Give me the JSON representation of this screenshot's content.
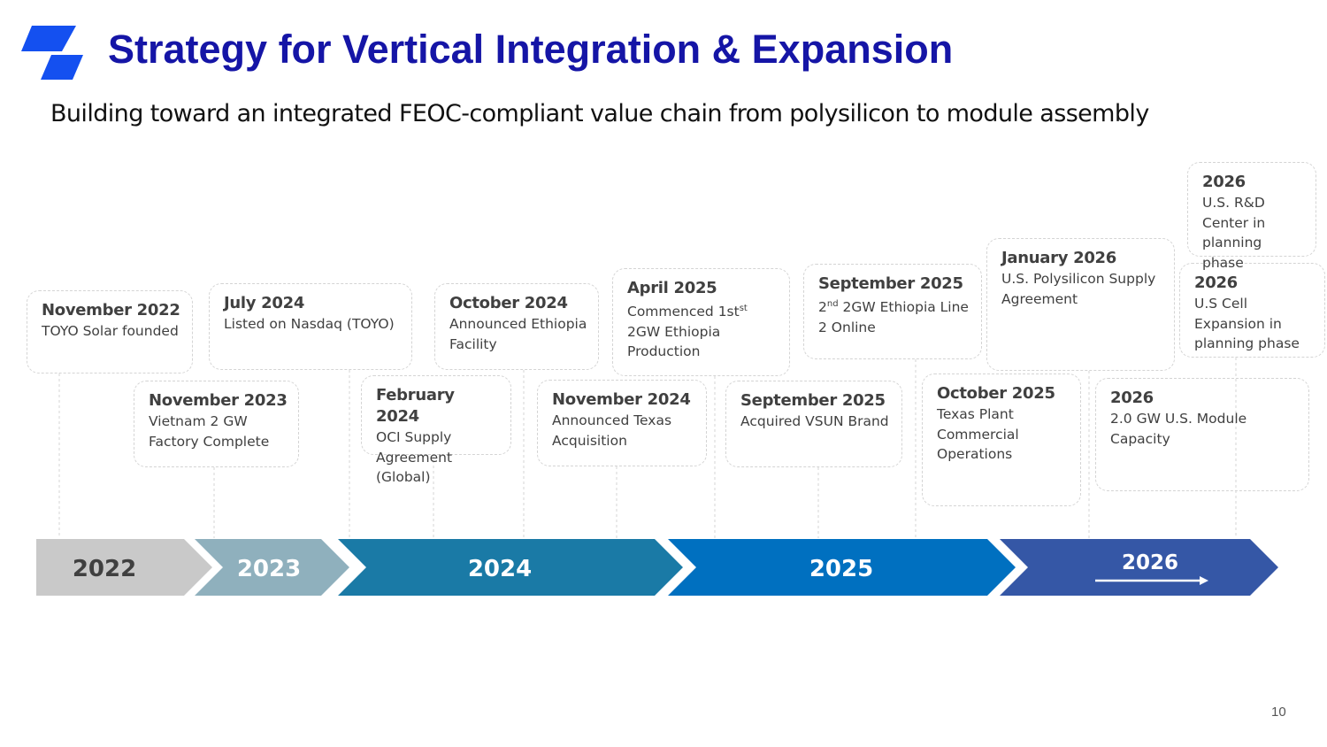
{
  "header": {
    "title": "Strategy for Vertical Integration & Expansion",
    "subtitle": "Building toward an integrated FEOC-compliant value chain from polysilicon to module assembly"
  },
  "timeline": {
    "years": [
      "2022",
      "2023",
      "2024",
      "2025",
      "2026"
    ]
  },
  "events": [
    {
      "date": "November 2022",
      "parts": [
        {
          "text": "TOYO Solar founded"
        }
      ]
    },
    {
      "date": "November 2023",
      "parts": [
        {
          "text": "Vietnam 2 GW Factory Complete"
        }
      ]
    },
    {
      "date": "July 2024",
      "parts": [
        {
          "text": "Listed on Nasdaq (TOYO)"
        }
      ]
    },
    {
      "date": "February 2024",
      "parts": [
        {
          "text": "OCI Supply Agreement (Global)"
        }
      ]
    },
    {
      "date": "October 2024",
      "parts": [
        {
          "text": "Announced Ethiopia Facility"
        }
      ]
    },
    {
      "date": "November 2024",
      "parts": [
        {
          "text": "Announced Texas Acquisition"
        }
      ]
    },
    {
      "date": "April 2025",
      "parts": [
        {
          "text": "Commenced 1st"
        },
        {
          "sup": "st"
        },
        {
          "text": " 2GW Ethiopia Production"
        }
      ]
    },
    {
      "date": "September 2025",
      "parts": [
        {
          "text": "Acquired VSUN Brand"
        }
      ]
    },
    {
      "date": "September 2025",
      "parts": [
        {
          "text": "2"
        },
        {
          "sup": "nd"
        },
        {
          "text": " 2GW Ethiopia Line 2 Online"
        }
      ]
    },
    {
      "date": "October 2025",
      "parts": [
        {
          "text": "Texas Plant Commercial Operations"
        }
      ]
    },
    {
      "date": "January 2026",
      "parts": [
        {
          "text": "U.S. Polysilicon Supply Agreement"
        }
      ]
    },
    {
      "date": "2026",
      "parts": [
        {
          "text": "2.0 GW U.S. Module Capacity"
        }
      ]
    },
    {
      "date": "2026",
      "parts": [
        {
          "text": "U.S Cell Expansion in planning phase"
        }
      ]
    },
    {
      "date": "2026",
      "parts": [
        {
          "text": "U.S. R&D Center in planning phase"
        }
      ]
    }
  ],
  "footer": {
    "page_number": "10"
  }
}
